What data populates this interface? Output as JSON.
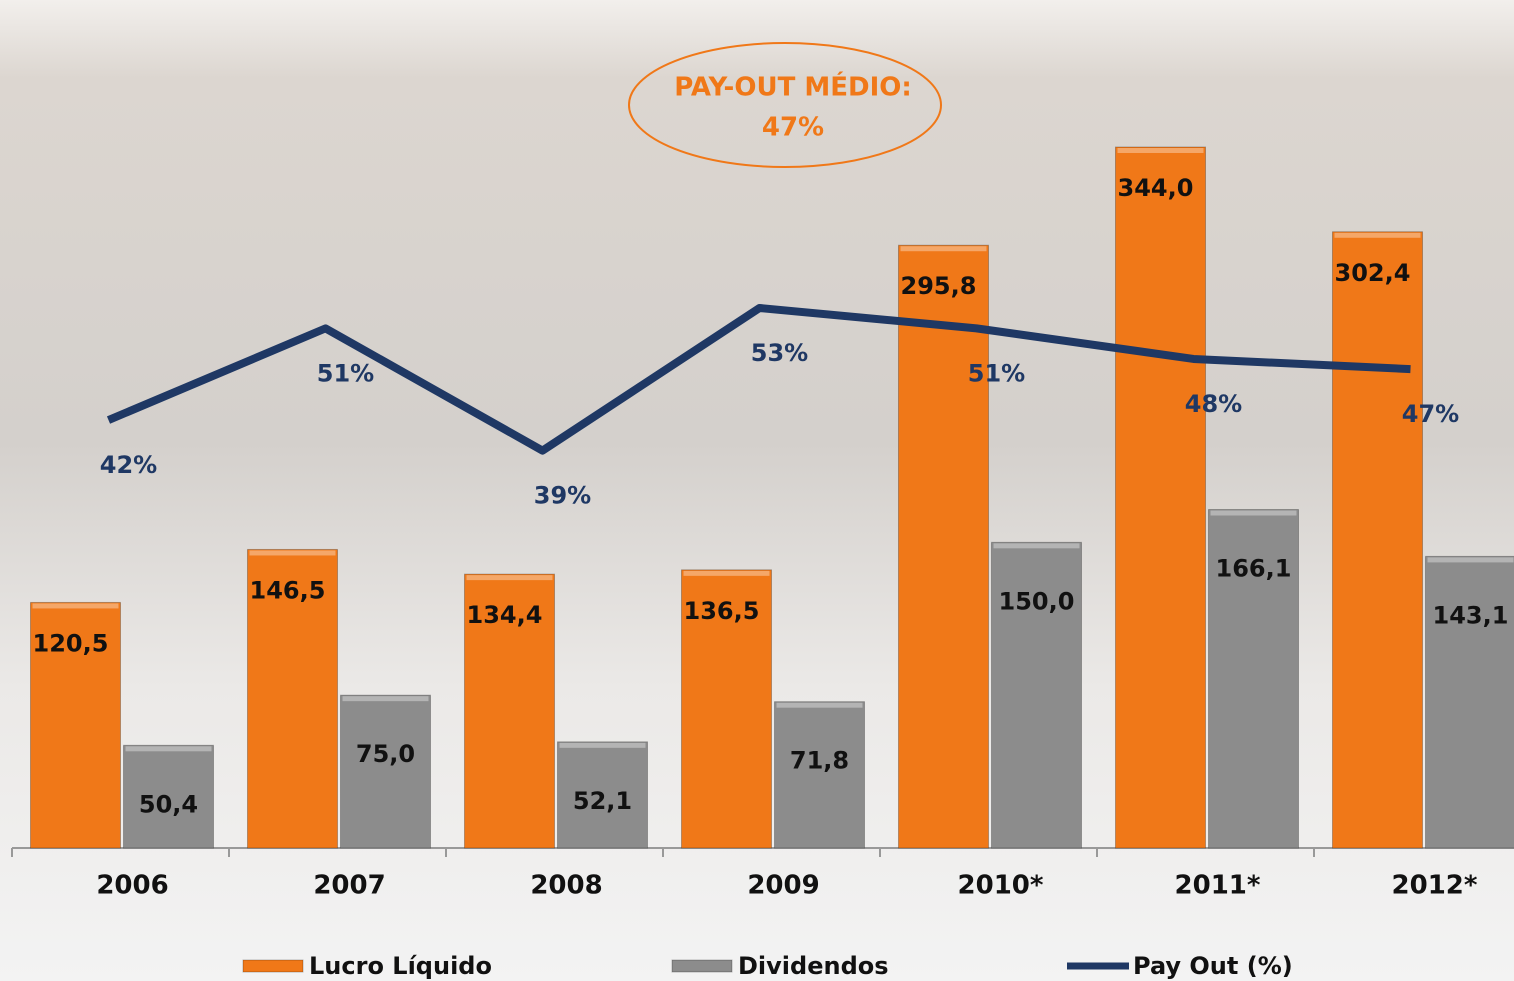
{
  "chart_data": {
    "type": "bar",
    "annotation": [
      "PAY-OUT MÉDIO:",
      "47%"
    ],
    "categories": [
      "2006",
      "2007",
      "2008",
      "2009",
      "2010*",
      "2011*",
      "2012*"
    ],
    "series": [
      {
        "name": "Lucro Líquido",
        "color": "#f07818",
        "values": [
          120.5,
          146.5,
          134.4,
          136.5,
          295.8,
          344.0,
          302.4
        ],
        "value_labels": [
          "120,5",
          "146,5",
          "134,4",
          "136,5",
          "295,8",
          "344,0",
          "302,4"
        ]
      },
      {
        "name": "Dividendos",
        "color": "#8c8c8c",
        "values": [
          50.4,
          75.0,
          52.1,
          71.8,
          150.0,
          166.1,
          143.1
        ],
        "value_labels": [
          "50,4",
          "75,0",
          "52,1",
          "71,8",
          "150,0",
          "166,1",
          "143,1"
        ]
      },
      {
        "name": "Pay Out (%)",
        "color": "#1f3864",
        "type": "line",
        "axis": "y2",
        "values": [
          42,
          51,
          39,
          53,
          51,
          48,
          47
        ],
        "value_labels": [
          "42%",
          "51%",
          "39%",
          "53%",
          "51%",
          "48%",
          "47%"
        ]
      }
    ]
  }
}
